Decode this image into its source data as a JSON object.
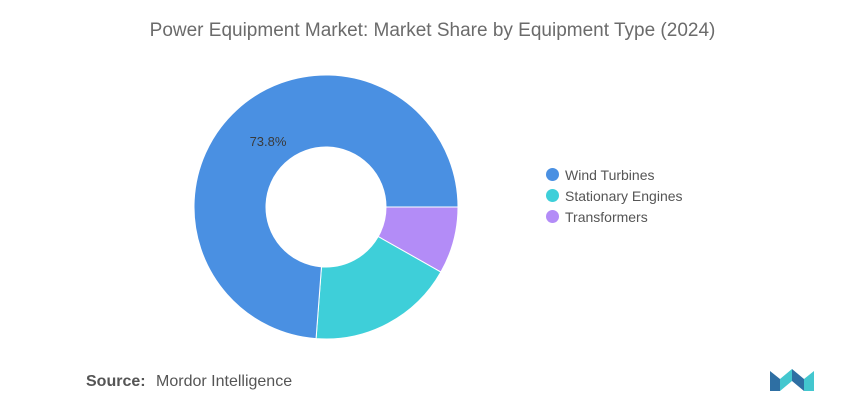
{
  "chart_data": {
    "type": "pie",
    "title": "Power Equipment Market: Market Share by Equipment Type (2024)",
    "categories": [
      "Wind Turbines",
      "Stationary Engines",
      "Transformers"
    ],
    "values": [
      73.8,
      18.0,
      8.2
    ],
    "colors": [
      "#4a90e2",
      "#3ecfd9",
      "#b38cf7"
    ],
    "data_labels": [
      "73.8%",
      "",
      ""
    ],
    "donut": true,
    "legend_position": "right"
  },
  "source": {
    "label": "Source:",
    "text": "Mordor Intelligence"
  },
  "logo": {
    "icon": "mordor-intelligence-logo",
    "colors": [
      "#2e6fa3",
      "#43c7cf"
    ]
  }
}
